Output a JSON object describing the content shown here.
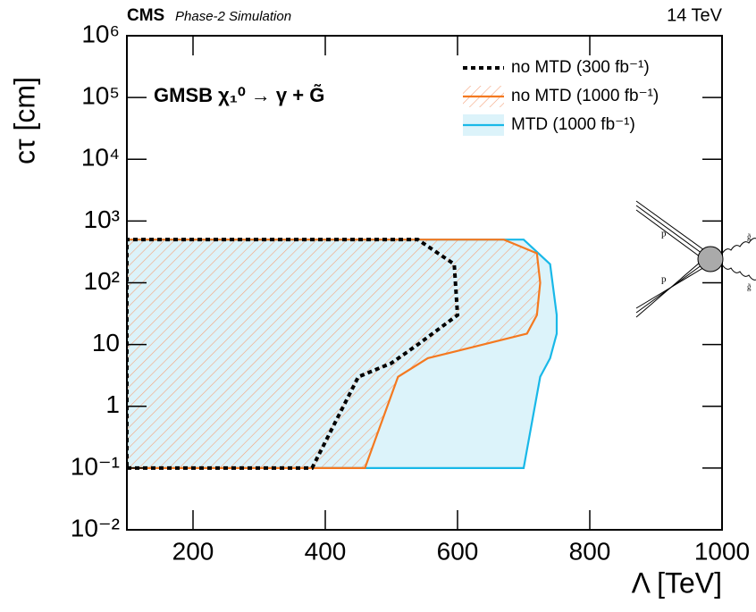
{
  "chart_data": {
    "type": "contour",
    "experiment": "CMS",
    "subtitle": "Phase-2 Simulation",
    "energy": "14 TeV",
    "process": "GMSB χ₁⁰ → γ + G̃",
    "x_label": "Λ [TeV]",
    "y_label": "cτ [cm]",
    "xlim": [
      100,
      1000
    ],
    "xticks": [
      200,
      400,
      600,
      800,
      1000
    ],
    "ylim": [
      0.01,
      1000000
    ],
    "yscale": "log",
    "yticks": [
      {
        "value": 0.01,
        "label": "10⁻²"
      },
      {
        "value": 0.1,
        "label": "10⁻¹"
      },
      1,
      10,
      {
        "value": 100,
        "label": "10²"
      },
      {
        "value": 1000,
        "label": "10³"
      },
      {
        "value": 10000,
        "label": "10⁴"
      },
      {
        "value": 100000,
        "label": "10⁵"
      },
      {
        "value": 1000000,
        "label": "10⁶"
      }
    ],
    "legend": "top right",
    "series": [
      {
        "name": "MTD (1000 fb⁻¹)",
        "color": "#18b8e8",
        "fill": "solid",
        "fill_color": "#dcf3fa",
        "dash": false,
        "x": [
          100,
          700,
          725,
          740,
          750,
          750,
          740,
          700,
          100
        ],
        "values": [
          0.1,
          0.1,
          3,
          6,
          15,
          30,
          200,
          500,
          500
        ]
      },
      {
        "name": "no MTD (1000 fb⁻¹)",
        "color": "#f47920",
        "fill": "hatch",
        "dash": false,
        "x": [
          100,
          460,
          510,
          555,
          705,
          720,
          725,
          720,
          670,
          100
        ],
        "values": [
          0.1,
          0.1,
          3,
          6,
          15,
          30,
          100,
          300,
          500,
          500
        ]
      },
      {
        "name": "no MTD (300 fb⁻¹)",
        "color": "#000000",
        "fill": "none",
        "dash": true,
        "x": [
          100,
          380,
          450,
          500,
          540,
          600,
          595,
          540,
          100
        ],
        "values": [
          0.1,
          0.1,
          3,
          5,
          10,
          30,
          200,
          500,
          500
        ]
      }
    ],
    "diagram_labels": [
      "p",
      "p",
      "g̃",
      "g̃"
    ]
  }
}
